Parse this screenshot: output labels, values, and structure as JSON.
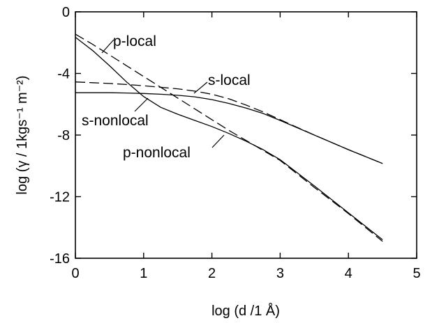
{
  "chart_data": {
    "type": "line",
    "xlabel": "log (d /1 Å)",
    "ylabel": "log (γ / 1kgs⁻¹ m⁻²)",
    "xlim": [
      0,
      5
    ],
    "ylim": [
      -16,
      0
    ],
    "x_ticks": [
      "0",
      "1",
      "2",
      "3",
      "4",
      "5"
    ],
    "y_ticks": [
      "0",
      "-4",
      "-8",
      "-12",
      "-16"
    ],
    "grid": false,
    "series": [
      {
        "name": "p-local",
        "style": "dashed",
        "x": [
          0,
          0.25,
          0.5,
          0.75,
          1.0,
          1.25,
          1.5,
          1.75,
          2.0,
          2.25,
          2.5,
          2.75,
          3.0,
          3.5,
          4.0,
          4.5
        ],
        "y": [
          -1.45,
          -2.1,
          -2.8,
          -3.5,
          -4.2,
          -4.9,
          -5.6,
          -6.3,
          -7.0,
          -7.7,
          -8.35,
          -9.0,
          -9.65,
          -11.4,
          -13.1,
          -14.9
        ]
      },
      {
        "name": "p-nonlocal",
        "style": "solid",
        "x": [
          0,
          0.25,
          0.5,
          0.75,
          1.0,
          1.25,
          1.5,
          1.75,
          2.0,
          2.25,
          2.5,
          2.75,
          3.0,
          3.5,
          4.0,
          4.5
        ],
        "y": [
          -1.65,
          -2.5,
          -3.5,
          -4.55,
          -5.5,
          -6.2,
          -6.65,
          -7.05,
          -7.45,
          -7.9,
          -8.4,
          -8.95,
          -9.6,
          -11.3,
          -13.05,
          -14.8
        ]
      },
      {
        "name": "s-local",
        "style": "dashed",
        "x": [
          0,
          0.25,
          0.5,
          0.75,
          1.0,
          1.25,
          1.5,
          1.75,
          2.0,
          2.25,
          2.5,
          2.75,
          3.0,
          3.5,
          4.0,
          4.5
        ],
        "y": [
          -4.55,
          -4.6,
          -4.65,
          -4.72,
          -4.8,
          -4.9,
          -5.0,
          -5.15,
          -5.35,
          -5.65,
          -6.05,
          -6.5,
          -7.0,
          -8.0,
          -8.95,
          -9.85
        ]
      },
      {
        "name": "s-nonlocal",
        "style": "solid",
        "x": [
          0,
          0.25,
          0.5,
          0.75,
          1.0,
          1.25,
          1.5,
          1.75,
          2.0,
          2.25,
          2.5,
          2.75,
          3.0,
          3.5,
          4.0,
          4.5
        ],
        "y": [
          -5.25,
          -5.25,
          -5.25,
          -5.27,
          -5.3,
          -5.35,
          -5.42,
          -5.52,
          -5.7,
          -5.95,
          -6.25,
          -6.6,
          -7.05,
          -8.0,
          -8.95,
          -9.85
        ]
      }
    ],
    "annotations": [
      {
        "text": "p-local",
        "series": "p-local"
      },
      {
        "text": "s-local",
        "series": "s-local"
      },
      {
        "text": "s-nonlocal",
        "series": "s-nonlocal"
      },
      {
        "text": "p-nonlocal",
        "series": "p-nonlocal"
      }
    ]
  }
}
